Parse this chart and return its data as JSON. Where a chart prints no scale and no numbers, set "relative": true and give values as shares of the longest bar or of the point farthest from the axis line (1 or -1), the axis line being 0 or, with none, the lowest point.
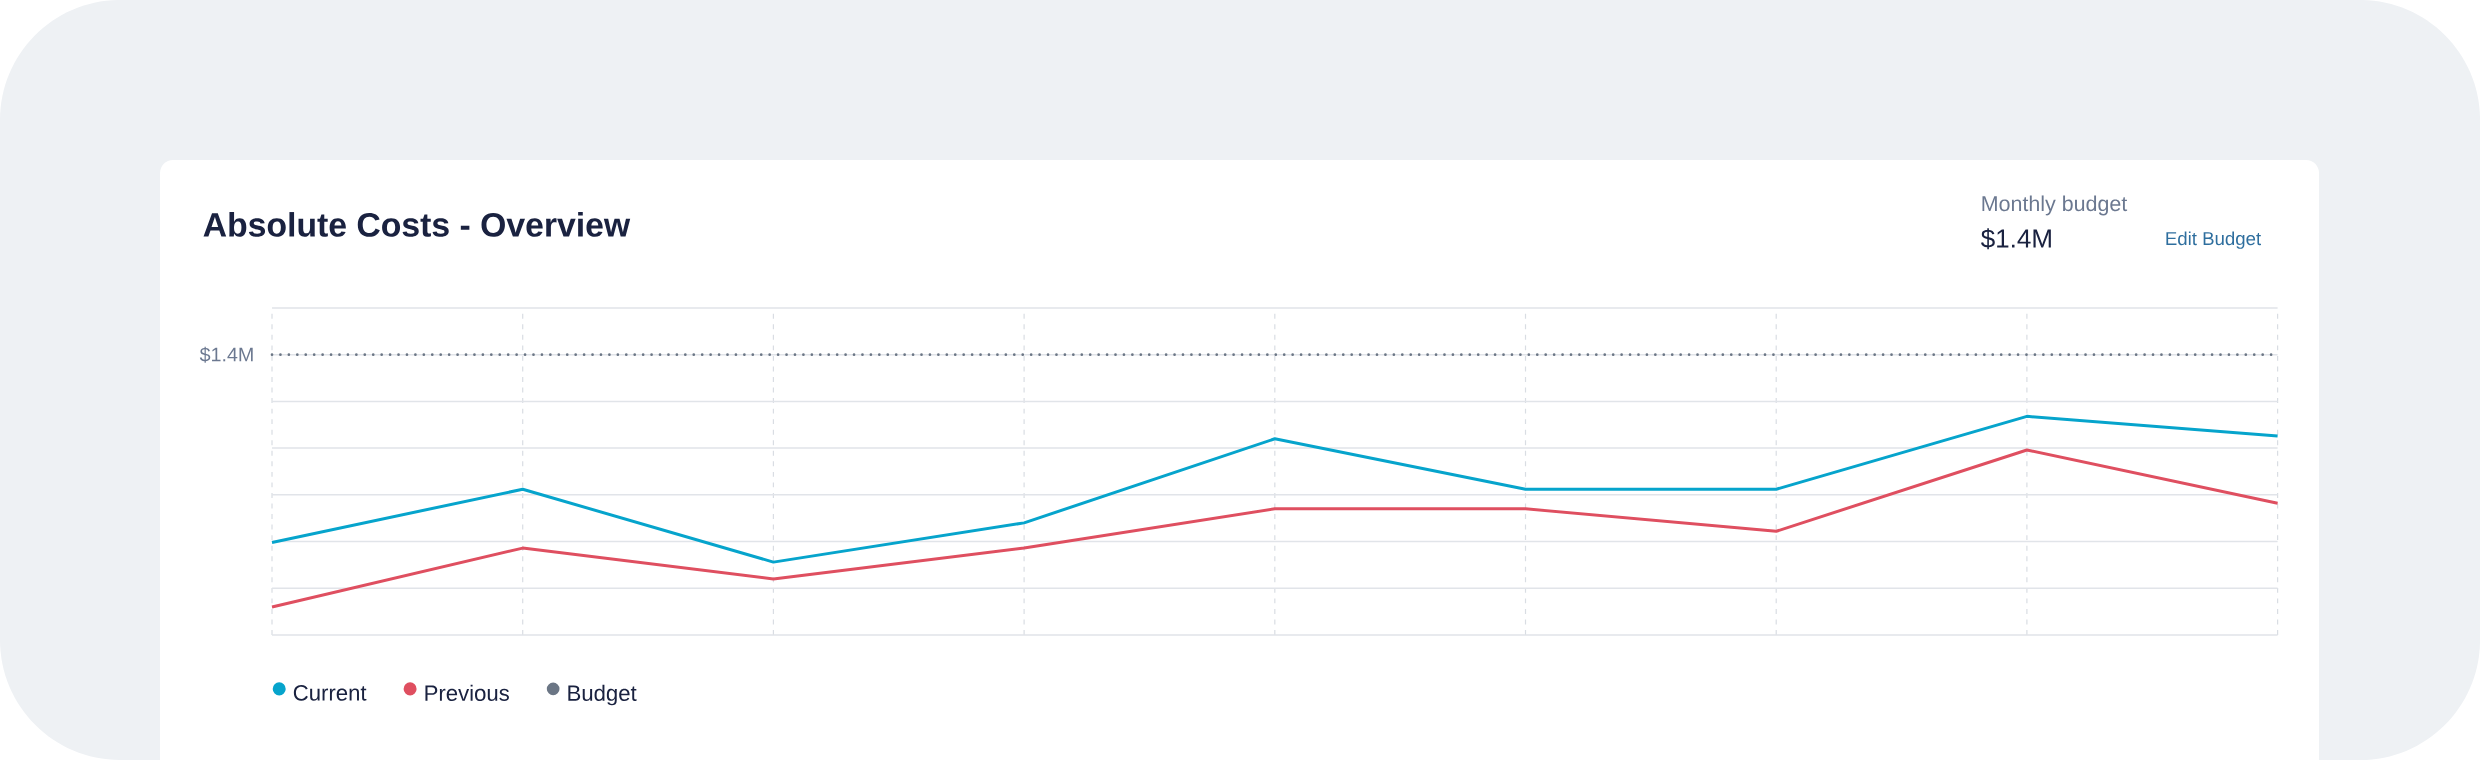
{
  "chart_data": {
    "type": "line",
    "title": "Absolute Costs - Overview",
    "categories": [
      null,
      null,
      null,
      null,
      null,
      null,
      null,
      null,
      null
    ],
    "series": [
      {
        "name": "Current",
        "color": "#06a4cc",
        "values": [
          0.33,
          0.52,
          0.26,
          0.4,
          0.7,
          0.52,
          0.52,
          0.78,
          0.71
        ]
      },
      {
        "name": "Previous",
        "color": "#df4f60",
        "values": [
          0.1,
          0.31,
          0.2,
          0.31,
          0.45,
          0.45,
          0.37,
          0.66,
          0.47
        ]
      },
      {
        "name": "Budget",
        "color": "#6b7685",
        "line_style": "dotted",
        "values": [
          1,
          1,
          1,
          1,
          1,
          1,
          1,
          1,
          1
        ]
      }
    ],
    "relative": true,
    "grid": true,
    "legend": "bottom left",
    "annotations": [
      "$1.4M",
      "Monthly budget",
      "$1.4M",
      "Edit Budget"
    ]
  }
}
